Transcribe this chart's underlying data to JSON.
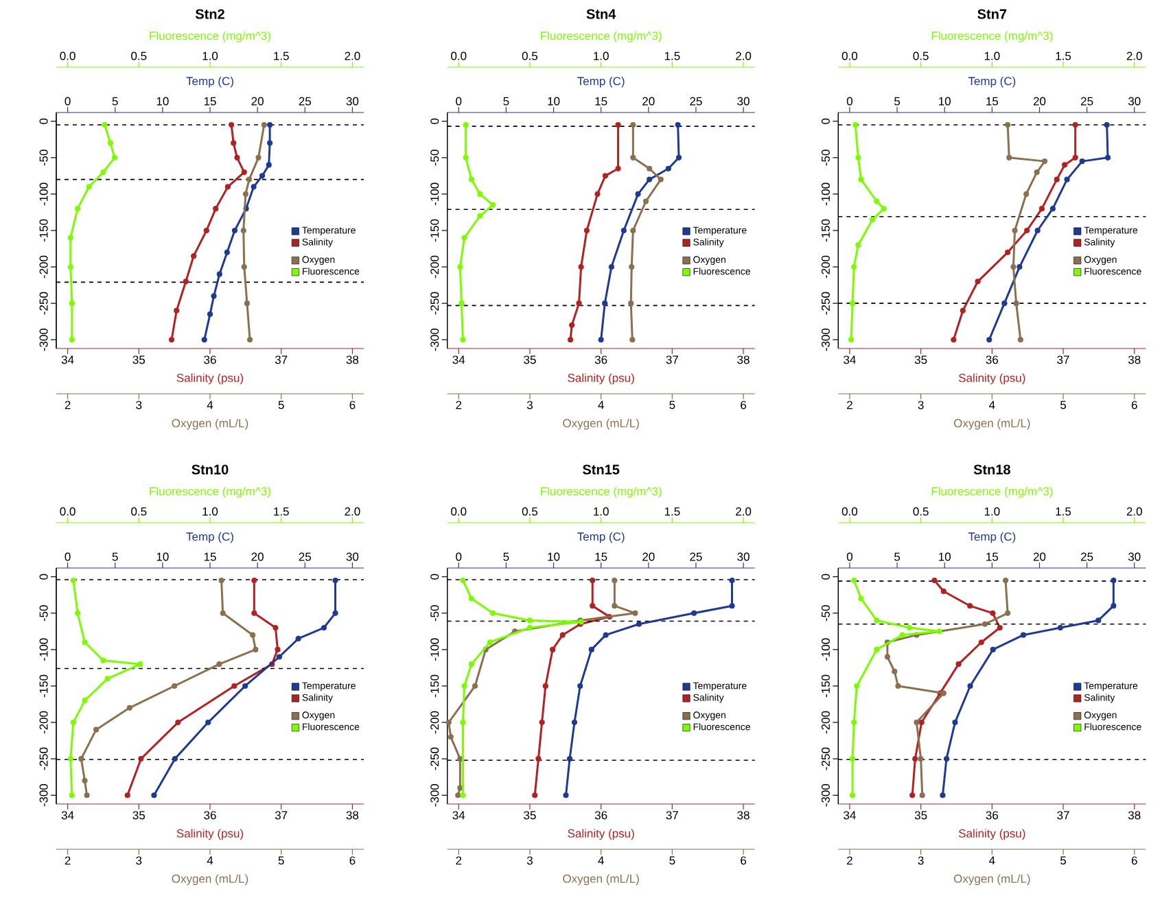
{
  "chart_data": [
    {
      "type": "line",
      "title": "Stn2",
      "marker": "circle",
      "legend": "right",
      "xlabel": "Salinity (psu)",
      "xlim": [
        33.84,
        38.16
      ],
      "xticks": [
        34,
        35,
        36,
        37,
        38
      ],
      "x2label": "Temp (C)",
      "x2lim": [
        -1.2,
        31.2
      ],
      "x2ticks": [
        0,
        5,
        10,
        15,
        20,
        25,
        30
      ],
      "ylim": [
        -312,
        12
      ],
      "yticks": [
        0,
        -50,
        -100,
        -150,
        -200,
        -250,
        -300
      ],
      "ref_lines": [
        {
          "axis": "y",
          "value": -5,
          "line_style": "dashed"
        },
        {
          "axis": "y",
          "value": -80,
          "line_style": "dashed"
        },
        {
          "axis": "y",
          "value": -221,
          "line_style": "dashed"
        }
      ],
      "series": [
        {
          "name": "Temperature",
          "color": "#1f3a93",
          "axis": "x2",
          "x": [
            21.3,
            21.3,
            21.2,
            20.5,
            19.6,
            18.8,
            17.6,
            16.8,
            16.0,
            15.4,
            15.0,
            14.4
          ],
          "values": [
            -5,
            -30,
            -60,
            -75,
            -90,
            -120,
            -150,
            -180,
            -210,
            -240,
            -265,
            -300
          ]
        },
        {
          "name": "Salinity",
          "color": "#b22222",
          "x": [
            36.3,
            36.33,
            36.38,
            36.48,
            36.25,
            36.08,
            35.95,
            35.77,
            35.66,
            35.53,
            35.46
          ],
          "values": [
            -5,
            -30,
            -50,
            -70,
            -90,
            -120,
            -150,
            -185,
            -220,
            -260,
            -300
          ]
        }
      ]
    },
    {
      "type": "line",
      "marker": "circle",
      "legend": "right",
      "tick_labels": "x",
      "xlabel": "Oxygen (mL/L)",
      "xlim": [
        1.84,
        6.16
      ],
      "xticks": [
        2,
        3,
        4,
        5,
        6
      ],
      "x2label": "Fluorescence (mg/m^3)",
      "x2lim": [
        -0.08,
        2.08
      ],
      "x2ticks": [
        {
          "value": 0,
          "label": "0.0"
        },
        0.5,
        {
          "value": 1,
          "label": "1.0"
        },
        1.5,
        {
          "value": 2,
          "label": "2.0"
        }
      ],
      "ylim": [
        -312,
        12
      ],
      "series": [
        {
          "name": "Oxygen",
          "color": "#8b7050",
          "x": [
            4.76,
            4.68,
            4.55,
            4.5,
            4.47,
            4.48,
            4.52,
            4.56
          ],
          "values": [
            -5,
            -50,
            -80,
            -100,
            -150,
            -200,
            -250,
            -300
          ]
        },
        {
          "name": "Fluorescence",
          "color": "#7cfc00",
          "axis": "x2",
          "x": [
            0.26,
            0.3,
            0.33,
            0.25,
            0.15,
            0.07,
            0.02,
            0.02,
            0.03,
            0.03
          ],
          "values": [
            -5,
            -30,
            -50,
            -70,
            -90,
            -120,
            -160,
            -200,
            -250,
            -300
          ]
        }
      ]
    },
    {
      "type": "line",
      "title": "Stn4",
      "marker": "circle",
      "legend": "right",
      "xlabel": "Salinity (psu)",
      "xlim": [
        33.84,
        38.16
      ],
      "xticks": [
        34,
        35,
        36,
        37,
        38
      ],
      "x2label": "Temp (C)",
      "x2lim": [
        -1.2,
        31.2
      ],
      "x2ticks": [
        0,
        5,
        10,
        15,
        20,
        25,
        30
      ],
      "ylim": [
        -312,
        12
      ],
      "yticks": [
        0,
        -50,
        -100,
        -150,
        -200,
        -250,
        -300
      ],
      "ref_lines": [
        {
          "axis": "y",
          "value": -7,
          "line_style": "dashed"
        },
        {
          "axis": "y",
          "value": -121,
          "line_style": "dashed"
        },
        {
          "axis": "y",
          "value": -253,
          "line_style": "dashed"
        }
      ],
      "series": [
        {
          "name": "Temperature",
          "color": "#1f3a93",
          "axis": "x2",
          "x": [
            23.1,
            23.2,
            22.1,
            20.1,
            18.9,
            17.4,
            16.1,
            15.4,
            15.0
          ],
          "values": [
            -5,
            -50,
            -65,
            -80,
            -100,
            -150,
            -200,
            -250,
            -300
          ]
        },
        {
          "name": "Salinity",
          "color": "#b22222",
          "x": [
            36.24,
            36.24,
            36.06,
            35.95,
            35.8,
            35.72,
            35.69,
            35.59,
            35.57
          ],
          "values": [
            -5,
            -65,
            -75,
            -100,
            -150,
            -200,
            -250,
            -280,
            -300
          ]
        }
      ]
    },
    {
      "type": "line",
      "marker": "circle",
      "legend": "right",
      "tick_labels": "x",
      "xlabel": "Oxygen (mL/L)",
      "xlim": [
        1.84,
        6.16
      ],
      "xticks": [
        2,
        3,
        4,
        5,
        6
      ],
      "x2label": "Fluorescence (mg/m^3)",
      "x2lim": [
        -0.08,
        2.08
      ],
      "x2ticks": [
        {
          "value": 0,
          "label": "0.0"
        },
        0.5,
        {
          "value": 1,
          "label": "1.0"
        },
        1.5,
        {
          "value": 2,
          "label": "2.0"
        }
      ],
      "ylim": [
        -312,
        12
      ],
      "series": [
        {
          "name": "Oxygen",
          "color": "#8b7050",
          "x": [
            4.45,
            4.45,
            4.68,
            4.84,
            4.63,
            4.45,
            4.43,
            4.42,
            4.44
          ],
          "values": [
            -5,
            -50,
            -65,
            -80,
            -110,
            -150,
            -200,
            -250,
            -300
          ]
        },
        {
          "name": "Fluorescence",
          "color": "#7cfc00",
          "axis": "x2",
          "x": [
            0.05,
            0.05,
            0.09,
            0.15,
            0.24,
            0.15,
            0.04,
            0.01,
            0.02,
            0.03
          ],
          "values": [
            -5,
            -50,
            -80,
            -100,
            -115,
            -130,
            -160,
            -200,
            -250,
            -300
          ]
        }
      ]
    },
    {
      "type": "line",
      "title": "Stn7",
      "marker": "circle",
      "legend": "right",
      "xlabel": "Salinity (psu)",
      "xlim": [
        33.84,
        38.16
      ],
      "xticks": [
        34,
        35,
        36,
        37,
        38
      ],
      "x2label": "Temp (C)",
      "x2lim": [
        -1.2,
        31.2
      ],
      "x2ticks": [
        0,
        5,
        10,
        15,
        20,
        25,
        30
      ],
      "ylim": [
        -312,
        12
      ],
      "yticks": [
        0,
        -50,
        -100,
        -150,
        -200,
        -250,
        -300
      ],
      "ref_lines": [
        {
          "axis": "y",
          "value": -5,
          "line_style": "dashed"
        },
        {
          "axis": "y",
          "value": -131,
          "line_style": "dashed"
        },
        {
          "axis": "y",
          "value": -250,
          "line_style": "dashed"
        }
      ],
      "series": [
        {
          "name": "Temperature",
          "color": "#1f3a93",
          "axis": "x2",
          "x": [
            27.1,
            27.2,
            24.5,
            22.9,
            21.4,
            19.8,
            17.9,
            16.3,
            14.7
          ],
          "values": [
            -5,
            -50,
            -55,
            -80,
            -120,
            -150,
            -200,
            -250,
            -300
          ]
        },
        {
          "name": "Salinity",
          "color": "#b22222",
          "x": [
            37.17,
            37.17,
            37.02,
            36.91,
            36.7,
            36.49,
            36.22,
            35.8,
            35.59,
            35.46
          ],
          "values": [
            -5,
            -50,
            -60,
            -80,
            -120,
            -150,
            -180,
            -220,
            -260,
            -300
          ]
        }
      ]
    },
    {
      "type": "line",
      "marker": "circle",
      "legend": "right",
      "tick_labels": "x",
      "xlabel": "Oxygen (mL/L)",
      "xlim": [
        1.84,
        6.16
      ],
      "xticks": [
        2,
        3,
        4,
        5,
        6
      ],
      "x2label": "Fluorescence (mg/m^3)",
      "x2lim": [
        -0.08,
        2.08
      ],
      "x2ticks": [
        {
          "value": 0,
          "label": "0.0"
        },
        0.5,
        {
          "value": 1,
          "label": "1.0"
        },
        1.5,
        {
          "value": 2,
          "label": "2.0"
        }
      ],
      "ylim": [
        -312,
        12
      ],
      "series": [
        {
          "name": "Oxygen",
          "color": "#8b7050",
          "x": [
            4.22,
            4.24,
            4.74,
            4.63,
            4.48,
            4.32,
            4.3,
            4.34,
            4.4
          ],
          "values": [
            -5,
            -50,
            -55,
            -70,
            -100,
            -150,
            -200,
            -250,
            -300
          ]
        },
        {
          "name": "Fluorescence",
          "color": "#7cfc00",
          "axis": "x2",
          "x": [
            0.04,
            0.06,
            0.08,
            0.19,
            0.24,
            0.16,
            0.06,
            0.03,
            0.02,
            0.01
          ],
          "values": [
            -5,
            -50,
            -80,
            -110,
            -120,
            -135,
            -170,
            -200,
            -250,
            -300
          ]
        }
      ]
    },
    {
      "type": "line",
      "title": "Stn10",
      "marker": "circle",
      "legend": "right",
      "xlabel": "Salinity (psu)",
      "xlim": [
        33.84,
        38.16
      ],
      "xticks": [
        34,
        35,
        36,
        37,
        38
      ],
      "x2label": "Temp (C)",
      "x2lim": [
        -1.2,
        31.2
      ],
      "x2ticks": [
        0,
        5,
        10,
        15,
        20,
        25,
        30
      ],
      "ylim": [
        -312,
        12
      ],
      "yticks": [
        0,
        -50,
        -100,
        -150,
        -200,
        -250,
        -300
      ],
      "ref_lines": [
        {
          "axis": "y",
          "value": -4,
          "line_style": "dashed"
        },
        {
          "axis": "y",
          "value": -126,
          "line_style": "dashed"
        },
        {
          "axis": "y",
          "value": -251,
          "line_style": "dashed"
        }
      ],
      "series": [
        {
          "name": "Temperature",
          "color": "#1f3a93",
          "axis": "x2",
          "x": [
            28.2,
            28.2,
            27.0,
            24.3,
            22.3,
            18.7,
            14.8,
            11.3,
            9.1
          ],
          "values": [
            -5,
            -50,
            -70,
            -85,
            -110,
            -150,
            -200,
            -250,
            -300
          ]
        },
        {
          "name": "Salinity",
          "color": "#b22222",
          "x": [
            36.62,
            36.62,
            36.92,
            36.95,
            36.87,
            36.34,
            35.55,
            35.03,
            34.84
          ],
          "values": [
            -5,
            -50,
            -70,
            -100,
            -120,
            -150,
            -200,
            -250,
            -300
          ]
        }
      ]
    },
    {
      "type": "line",
      "marker": "circle",
      "legend": "right",
      "tick_labels": "x",
      "xlabel": "Oxygen (mL/L)",
      "xlim": [
        1.84,
        6.16
      ],
      "xticks": [
        2,
        3,
        4,
        5,
        6
      ],
      "x2label": "Fluorescence (mg/m^3)",
      "x2lim": [
        -0.08,
        2.08
      ],
      "x2ticks": [
        {
          "value": 0,
          "label": "0.0"
        },
        0.5,
        {
          "value": 1,
          "label": "1.0"
        },
        1.5,
        {
          "value": 2,
          "label": "2.0"
        }
      ],
      "ylim": [
        -312,
        12
      ],
      "series": [
        {
          "name": "Oxygen",
          "color": "#8b7050",
          "x": [
            4.16,
            4.18,
            4.6,
            4.64,
            4.13,
            3.5,
            2.87,
            2.4,
            2.19,
            2.24,
            2.27
          ],
          "values": [
            -5,
            -50,
            -80,
            -100,
            -120,
            -150,
            -180,
            -210,
            -250,
            -280,
            -300
          ]
        },
        {
          "name": "Fluorescence",
          "color": "#7cfc00",
          "axis": "x2",
          "x": [
            0.04,
            0.07,
            0.12,
            0.25,
            0.51,
            0.28,
            0.12,
            0.04,
            0.02,
            0.03
          ],
          "values": [
            -5,
            -50,
            -90,
            -115,
            -120,
            -140,
            -170,
            -200,
            -250,
            -300
          ]
        }
      ]
    },
    {
      "type": "line",
      "title": "Stn15",
      "marker": "circle",
      "legend": "right",
      "xlabel": "Salinity (psu)",
      "xlim": [
        33.84,
        38.16
      ],
      "xticks": [
        34,
        35,
        36,
        37,
        38
      ],
      "x2label": "Temp (C)",
      "x2lim": [
        -1.2,
        31.2
      ],
      "x2ticks": [
        0,
        5,
        10,
        15,
        20,
        25,
        30
      ],
      "ylim": [
        -312,
        12
      ],
      "yticks": [
        0,
        -50,
        -100,
        -150,
        -200,
        -250,
        -300
      ],
      "ref_lines": [
        {
          "axis": "y",
          "value": -4,
          "line_style": "dashed"
        },
        {
          "axis": "y",
          "value": -61,
          "line_style": "dashed"
        },
        {
          "axis": "y",
          "value": -252,
          "line_style": "dashed"
        }
      ],
      "series": [
        {
          "name": "Temperature",
          "color": "#1f3a93",
          "axis": "x2",
          "x": [
            28.8,
            28.8,
            24.8,
            19.0,
            15.5,
            14.0,
            12.8,
            12.2,
            11.7,
            11.3
          ],
          "values": [
            -5,
            -40,
            -50,
            -65,
            -80,
            -100,
            -150,
            -200,
            -250,
            -300
          ]
        },
        {
          "name": "Salinity",
          "color": "#b22222",
          "x": [
            35.88,
            35.88,
            36.12,
            35.71,
            35.46,
            35.32,
            35.22,
            35.17,
            35.12,
            35.07
          ],
          "values": [
            -5,
            -40,
            -55,
            -65,
            -80,
            -100,
            -150,
            -200,
            -250,
            -300
          ]
        }
      ]
    },
    {
      "type": "line",
      "marker": "circle",
      "legend": "right",
      "tick_labels": "x",
      "xlabel": "Oxygen (mL/L)",
      "xlim": [
        1.84,
        6.16
      ],
      "xticks": [
        2,
        3,
        4,
        5,
        6
      ],
      "x2label": "Fluorescence (mg/m^3)",
      "x2lim": [
        -0.08,
        2.08
      ],
      "x2ticks": [
        {
          "value": 0,
          "label": "0.0"
        },
        0.5,
        {
          "value": 1,
          "label": "1.0"
        },
        1.5,
        {
          "value": 2,
          "label": "2.0"
        }
      ],
      "ylim": [
        -312,
        12
      ],
      "series": [
        {
          "name": "Oxygen",
          "color": "#8b7050",
          "x": [
            4.19,
            4.19,
            4.48,
            3.71,
            2.79,
            2.38,
            2.23,
            1.86,
            1.89,
            2.02,
            2.02,
            1.99
          ],
          "values": [
            -5,
            -40,
            -50,
            -60,
            -75,
            -100,
            -150,
            -200,
            -220,
            -250,
            -290,
            -300
          ]
        },
        {
          "name": "Fluorescence",
          "color": "#7cfc00",
          "axis": "x2",
          "x": [
            0.03,
            0.09,
            0.24,
            0.5,
            0.86,
            0.5,
            0.22,
            0.09,
            0.04,
            0.03,
            0.03
          ],
          "values": [
            -5,
            -30,
            -50,
            -60,
            -62,
            -70,
            -90,
            -120,
            -150,
            -200,
            -300
          ]
        }
      ]
    },
    {
      "type": "line",
      "title": "Stn18",
      "marker": "circle",
      "legend": "right",
      "xlabel": "Salinity (psu)",
      "xlim": [
        33.84,
        38.16
      ],
      "xticks": [
        34,
        35,
        36,
        37,
        38
      ],
      "x2label": "Temp (C)",
      "x2lim": [
        -1.2,
        31.2
      ],
      "x2ticks": [
        0,
        5,
        10,
        15,
        20,
        25,
        30
      ],
      "ylim": [
        -312,
        12
      ],
      "yticks": [
        0,
        -50,
        -100,
        -150,
        -200,
        -250,
        -300
      ],
      "ref_lines": [
        {
          "axis": "y",
          "value": -6,
          "line_style": "dashed"
        },
        {
          "axis": "y",
          "value": -65,
          "line_style": "dashed"
        },
        {
          "axis": "y",
          "value": -251,
          "line_style": "dashed"
        }
      ],
      "series": [
        {
          "name": "Temperature",
          "color": "#1f3a93",
          "axis": "x2",
          "x": [
            27.8,
            27.8,
            26.2,
            22.2,
            18.3,
            15.1,
            12.7,
            11.1,
            10.2,
            9.8
          ],
          "values": [
            -5,
            -40,
            -60,
            -70,
            -80,
            -100,
            -150,
            -200,
            -250,
            -300
          ]
        },
        {
          "name": "Salinity",
          "color": "#b22222",
          "x": [
            35.19,
            35.32,
            35.69,
            36.01,
            36.11,
            35.85,
            35.53,
            35.27,
            35.01,
            34.92,
            34.88
          ],
          "values": [
            -5,
            -20,
            -40,
            -50,
            -70,
            -90,
            -120,
            -160,
            -200,
            -250,
            -300
          ]
        }
      ]
    },
    {
      "type": "line",
      "marker": "circle",
      "legend": "right",
      "tick_labels": "x",
      "xlabel": "Oxygen (mL/L)",
      "xlim": [
        1.84,
        6.16
      ],
      "xticks": [
        2,
        3,
        4,
        5,
        6
      ],
      "x2label": "Fluorescence (mg/m^3)",
      "x2lim": [
        -0.08,
        2.08
      ],
      "x2ticks": [
        {
          "value": 0,
          "label": "0.0"
        },
        0.5,
        {
          "value": 1,
          "label": "1.0"
        },
        1.5,
        {
          "value": 2,
          "label": "2.0"
        }
      ],
      "ylim": [
        -312,
        12
      ],
      "series": [
        {
          "name": "Oxygen",
          "color": "#8b7050",
          "x": [
            4.19,
            4.22,
            3.9,
            2.94,
            2.53,
            2.53,
            2.63,
            2.68,
            3.32,
            2.94,
            3.0,
            3.02
          ],
          "values": [
            -5,
            -50,
            -65,
            -80,
            -90,
            -110,
            -130,
            -150,
            -160,
            -200,
            -250,
            -300
          ]
        },
        {
          "name": "Fluorescence",
          "color": "#7cfc00",
          "axis": "x2",
          "x": [
            0.03,
            0.08,
            0.19,
            0.42,
            0.63,
            0.37,
            0.19,
            0.05,
            0.03,
            0.02,
            0.02
          ],
          "values": [
            -5,
            -30,
            -60,
            -70,
            -75,
            -80,
            -100,
            -150,
            -200,
            -250,
            -300
          ]
        }
      ]
    }
  ]
}
